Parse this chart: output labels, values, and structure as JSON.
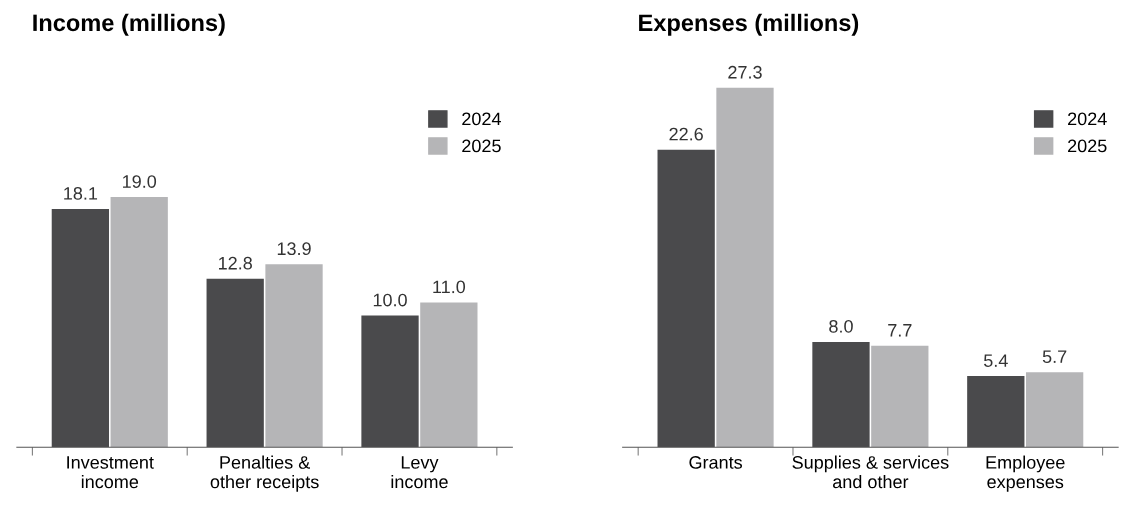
{
  "chart_data": [
    {
      "type": "bar",
      "title": "Income (millions)",
      "categories": [
        "Investment\nincome",
        "Penalties &\nother receipts",
        "Levy\nincome"
      ],
      "series": [
        {
          "name": "2024",
          "color": "#4a4a4c",
          "values": [
            18.1,
            12.8,
            10.0
          ],
          "value_labels": [
            "18.1",
            "12.8",
            "10.0"
          ]
        },
        {
          "name": "2025",
          "color": "#b5b5b7",
          "values": [
            19.0,
            13.9,
            11.0
          ],
          "value_labels": [
            "19.0",
            "13.9",
            "11.0"
          ]
        }
      ],
      "legend": "top right",
      "grid": false
    },
    {
      "type": "bar",
      "title": "Expenses (millions)",
      "categories": [
        "Grants",
        "Supplies & services\nand other",
        "Employee\nexpenses"
      ],
      "series": [
        {
          "name": "2024",
          "color": "#4a4a4c",
          "values": [
            22.6,
            8.0,
            5.4
          ],
          "value_labels": [
            "22.6",
            "8.0",
            "5.4"
          ]
        },
        {
          "name": "2025",
          "color": "#b5b5b7",
          "values": [
            27.3,
            7.7,
            5.7
          ],
          "value_labels": [
            "27.3",
            "7.7",
            "5.7"
          ]
        }
      ],
      "legend": "top right",
      "grid": false
    }
  ]
}
